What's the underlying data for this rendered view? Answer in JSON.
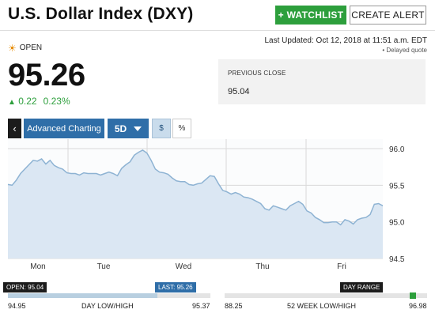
{
  "header": {
    "title": "U.S. Dollar Index (DXY)",
    "watchlist_label": "+ WATCHLIST",
    "alert_label": "CREATE ALERT"
  },
  "update": {
    "last_updated": "Last Updated: Oct 12, 2018 at 11:51 a.m. EDT",
    "delayed": "Delayed quote"
  },
  "quote": {
    "status": "OPEN",
    "price": "95.26",
    "change": "0.22",
    "change_pct": "0.23%",
    "change_color": "#2d9f3c"
  },
  "previous_close": {
    "label": "PREVIOUS CLOSE",
    "value": "95.04"
  },
  "toolbar": {
    "back_icon": "chevron-left-icon",
    "advanced_label": "Advanced Charting",
    "range_label": "5D",
    "dollar_label": "$",
    "percent_label": "%"
  },
  "chart_data": {
    "type": "area",
    "x_labels": [
      "Mon",
      "Tue",
      "Wed",
      "Thu",
      "Fri"
    ],
    "ylim": [
      94.5,
      96.0
    ],
    "y_ticks": [
      "96.0",
      "95.5",
      "95.0",
      "94.5"
    ],
    "grid": true,
    "fill_color": "#dbe7f3",
    "line_color": "#8eb3d3",
    "series": [
      {
        "values": [
          95.51,
          95.5,
          95.57,
          95.66,
          95.72,
          95.78,
          95.84,
          95.83,
          95.86,
          95.79,
          95.84,
          95.77,
          95.74,
          95.72,
          95.67,
          95.66,
          95.66,
          95.64,
          95.67,
          95.66,
          95.66,
          95.66,
          95.64,
          95.66,
          95.68,
          95.66,
          95.63,
          95.73,
          95.78,
          95.82,
          95.91,
          95.95,
          95.98,
          95.94,
          95.84,
          95.72,
          95.68,
          95.67,
          95.65,
          95.6,
          95.56,
          95.55,
          95.55,
          95.51,
          95.5,
          95.52,
          95.53,
          95.58,
          95.63,
          95.62,
          95.52,
          95.43,
          95.41,
          95.38,
          95.4,
          95.38,
          95.34,
          95.33,
          95.31,
          95.28,
          95.25,
          95.18,
          95.16,
          95.22,
          95.2,
          95.18,
          95.16,
          95.22,
          95.25,
          95.28,
          95.24,
          95.15,
          95.12,
          95.06,
          95.03,
          94.99,
          94.99,
          95.0,
          95.0,
          94.96,
          95.03,
          95.01,
          94.97,
          95.03,
          95.05,
          95.06,
          95.1,
          95.24,
          95.25,
          95.22
        ]
      }
    ]
  },
  "day_range": {
    "open_tag": "OPEN: 95.04",
    "last_tag": "LAST: 95.26",
    "low": "94.95",
    "high": "95.37",
    "label": "DAY LOW/HIGH",
    "open": 95.04,
    "last": 95.26
  },
  "week52_range": {
    "tag": "DAY RANGE",
    "low": "88.25",
    "high": "96.98",
    "label": "52 WEEK LOW/HIGH",
    "level_fraction": 0.93
  }
}
